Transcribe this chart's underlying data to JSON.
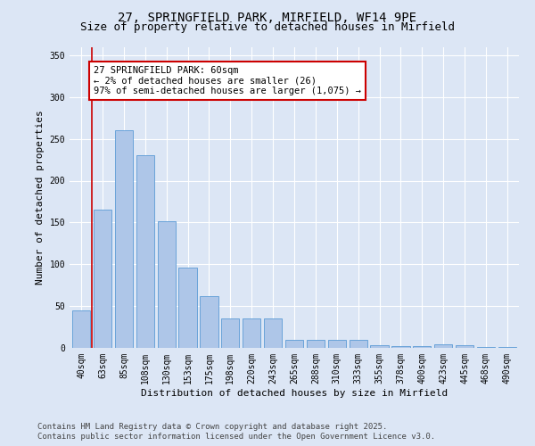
{
  "title_line1": "27, SPRINGFIELD PARK, MIRFIELD, WF14 9PE",
  "title_line2": "Size of property relative to detached houses in Mirfield",
  "xlabel": "Distribution of detached houses by size in Mirfield",
  "ylabel": "Number of detached properties",
  "categories": [
    "40sqm",
    "63sqm",
    "85sqm",
    "108sqm",
    "130sqm",
    "153sqm",
    "175sqm",
    "198sqm",
    "220sqm",
    "243sqm",
    "265sqm",
    "288sqm",
    "310sqm",
    "333sqm",
    "355sqm",
    "378sqm",
    "400sqm",
    "423sqm",
    "445sqm",
    "468sqm",
    "490sqm"
  ],
  "values": [
    45,
    165,
    260,
    230,
    152,
    96,
    62,
    35,
    35,
    35,
    10,
    10,
    10,
    10,
    3,
    2,
    2,
    4,
    3,
    1,
    1
  ],
  "bar_color": "#aec6e8",
  "bar_edge_color": "#5b9bd5",
  "annotation_text": "27 SPRINGFIELD PARK: 60sqm\n← 2% of detached houses are smaller (26)\n97% of semi-detached houses are larger (1,075) →",
  "annotation_box_color": "#ffffff",
  "annotation_box_edge": "#cc0000",
  "vline_x": 0.5,
  "ylim": [
    0,
    360
  ],
  "yticks": [
    0,
    50,
    100,
    150,
    200,
    250,
    300,
    350
  ],
  "background_color": "#dce6f5",
  "plot_background": "#dce6f5",
  "grid_color": "#ffffff",
  "footer_line1": "Contains HM Land Registry data © Crown copyright and database right 2025.",
  "footer_line2": "Contains public sector information licensed under the Open Government Licence v3.0.",
  "title_fontsize": 10,
  "subtitle_fontsize": 9,
  "axis_label_fontsize": 8,
  "tick_fontsize": 7,
  "annotation_fontsize": 7.5,
  "footer_fontsize": 6.5
}
